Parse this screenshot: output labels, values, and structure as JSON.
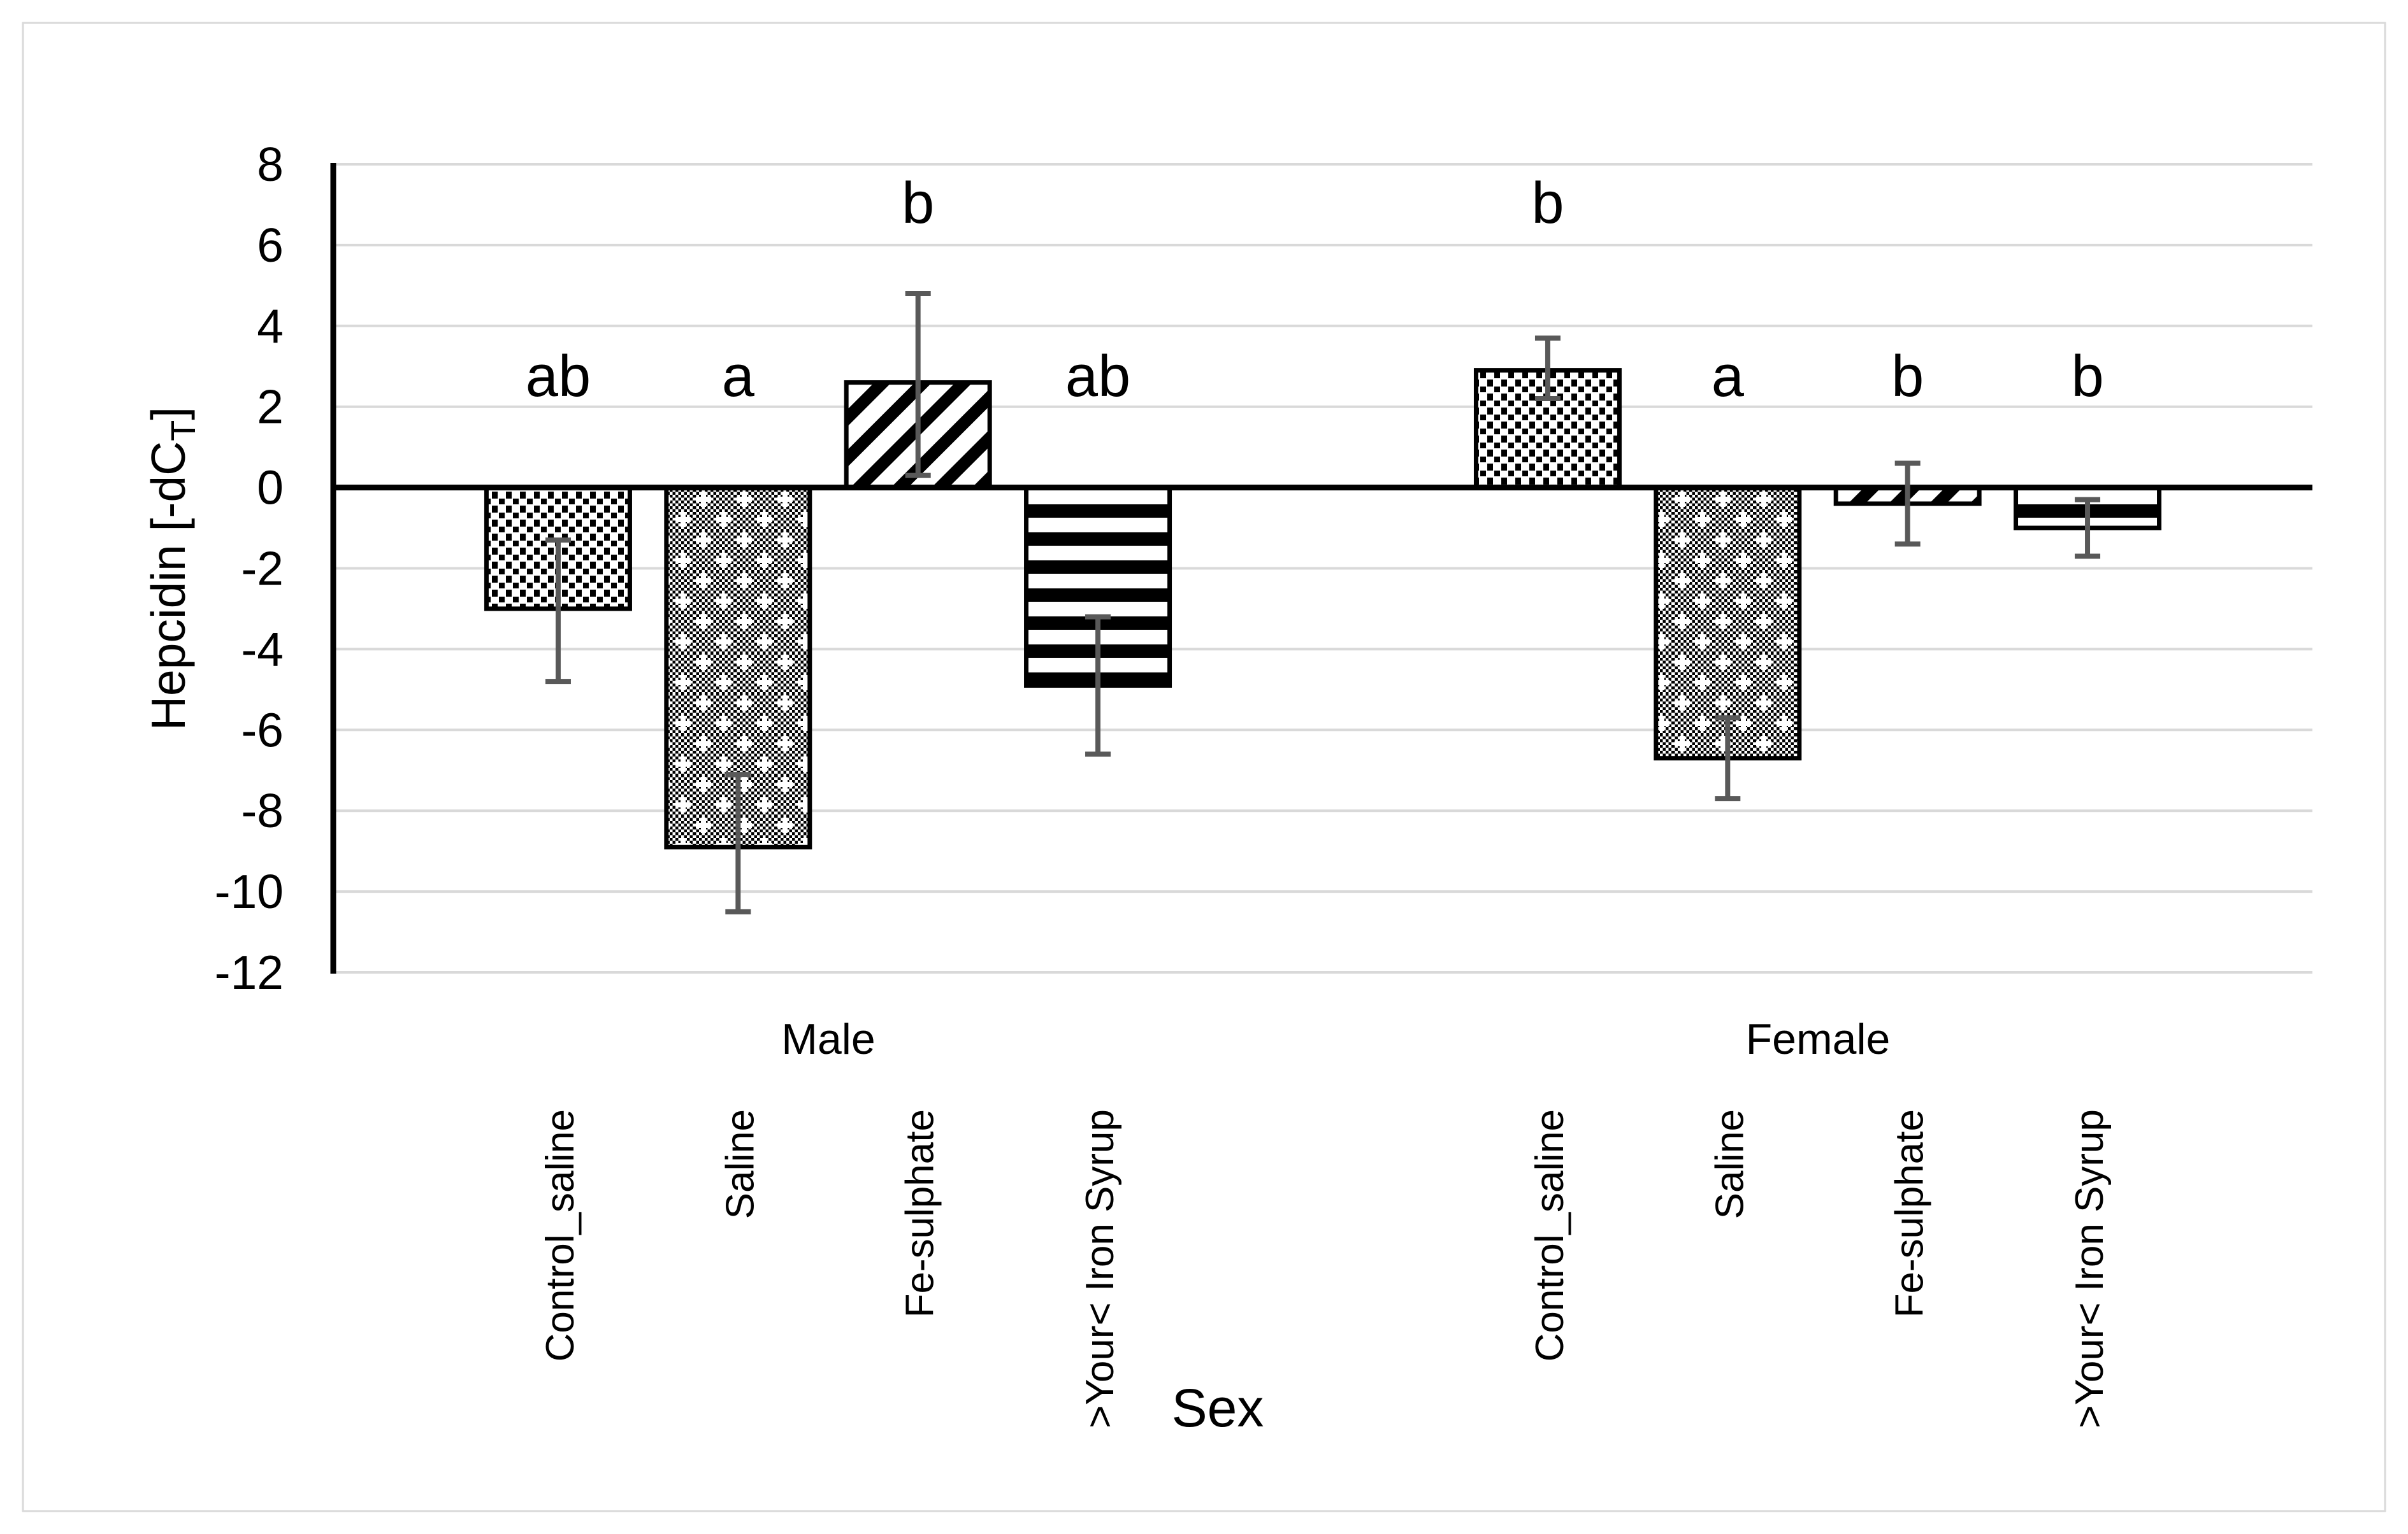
{
  "chart_data": {
    "type": "bar",
    "title": "",
    "xlabel": "Sex",
    "ylabel": {
      "main": "Hepcidin [-dC",
      "sub": "T",
      "end": "]"
    },
    "ylim": [
      -12,
      8
    ],
    "ytick_step": 2,
    "yticks": [
      8,
      6,
      4,
      2,
      0,
      -2,
      -4,
      -6,
      -8,
      -10,
      -12
    ],
    "grid": true,
    "legend": "none",
    "group_labels": [
      "Male",
      "Female"
    ],
    "groups": [
      {
        "label": "Male",
        "bars": [
          {
            "category": "Control_saline",
            "value": -3.0,
            "err_low": -4.8,
            "err_high": -1.3,
            "letter": "ab",
            "letter_pos": "low",
            "pattern": "fine-dots"
          },
          {
            "category": "Saline",
            "value": -8.9,
            "err_low": -10.5,
            "err_high": -7.1,
            "letter": "a",
            "letter_pos": "low",
            "pattern": "weave"
          },
          {
            "category": "Fe-sulphate",
            "value": 2.6,
            "err_low": 0.3,
            "err_high": 4.8,
            "letter": "b",
            "letter_pos": "high",
            "pattern": "diagonal-stripes"
          },
          {
            "category": ">Your< Iron Syrup",
            "value": -4.9,
            "err_low": -6.6,
            "err_high": -3.2,
            "letter": "ab",
            "letter_pos": "low",
            "pattern": "horizontal-stripes"
          }
        ]
      },
      {
        "label": "Female",
        "bars": [
          {
            "category": "Control_saline",
            "value": 2.9,
            "err_low": 2.2,
            "err_high": 3.7,
            "letter": "b",
            "letter_pos": "high",
            "pattern": "fine-dots"
          },
          {
            "category": "Saline",
            "value": -6.7,
            "err_low": -7.7,
            "err_high": -5.7,
            "letter": "a",
            "letter_pos": "low",
            "pattern": "weave"
          },
          {
            "category": "Fe-sulphate",
            "value": -0.4,
            "err_low": -1.4,
            "err_high": 0.6,
            "letter": "b",
            "letter_pos": "low",
            "pattern": "diagonal-stripes"
          },
          {
            "category": ">Your< Iron Syrup",
            "value": -1.0,
            "err_low": -1.7,
            "err_high": -0.3,
            "letter": "b",
            "letter_pos": "low",
            "pattern": "horizontal-stripes"
          }
        ]
      }
    ],
    "colors": {
      "bar_fill_base": "#ffffff",
      "bar_pattern": "#000000",
      "bar_stroke": "#000000",
      "gridline": "#d9d9d9",
      "axis_line": "#000000",
      "error_bar": "#595959",
      "figure_border": "#d9d9d9",
      "text": "#000000"
    }
  }
}
